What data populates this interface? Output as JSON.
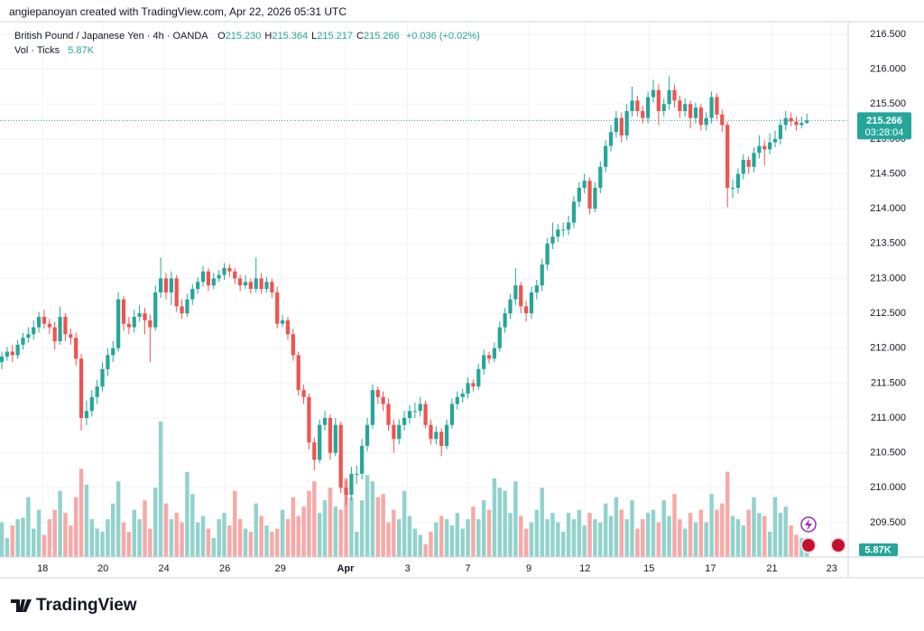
{
  "attribution": "angiepanoyan created with TradingView.com, Apr 22, 2026 05:31 UTC",
  "logo": "TradingView",
  "chart_data": {
    "type": "candlestick",
    "symbol": "British Pound / Japanese Yen · 4h · OANDA",
    "legend": [
      {
        "key": "O",
        "value": "215.230"
      },
      {
        "key": "H",
        "value": "215.364"
      },
      {
        "key": "L",
        "value": "215.217"
      },
      {
        "key": "C",
        "value": "215.266"
      }
    ],
    "change": "+0.036 (+0.02%)",
    "volume_title": "Vol · Ticks",
    "volume_last_label": "5.87K",
    "countdown": "03:28:04",
    "up_color": "#26a69a",
    "down_color": "#ef5350",
    "up_volume_color": "#92d2cc",
    "down_volume_color": "#f7a9a7",
    "grid": true,
    "xlim": [
      -0.34,
      159.8
    ],
    "ylim": [
      209.007,
      216.681
    ],
    "yticks": [
      {
        "value": 209.5,
        "label": "209.500"
      },
      {
        "value": 210,
        "label": "210.000"
      },
      {
        "value": 210.5,
        "label": "210.500"
      },
      {
        "value": 211,
        "label": "211.000"
      },
      {
        "value": 211.5,
        "label": "211.500"
      },
      {
        "value": 212,
        "label": "212.000"
      },
      {
        "value": 212.5,
        "label": "212.500"
      },
      {
        "value": 213,
        "label": "213.000"
      },
      {
        "value": 213.5,
        "label": "213.500"
      },
      {
        "value": 214,
        "label": "214.000"
      },
      {
        "value": 214.5,
        "label": "214.500"
      },
      {
        "value": 215,
        "label": "215.000"
      },
      {
        "value": 215.5,
        "label": "215.500"
      },
      {
        "value": 216,
        "label": "216.000"
      },
      {
        "value": 216.5,
        "label": "216.500"
      }
    ],
    "xticks": [
      {
        "value": 7.7,
        "label": "18"
      },
      {
        "value": 19.1,
        "label": "20"
      },
      {
        "value": 30.6,
        "label": "24"
      },
      {
        "value": 42.1,
        "label": "26"
      },
      {
        "value": 52.6,
        "label": "29"
      },
      {
        "value": 64.9,
        "label": "Apr"
      },
      {
        "value": 76.6,
        "label": "3"
      },
      {
        "value": 88.0,
        "label": "7"
      },
      {
        "value": 99.5,
        "label": "9"
      },
      {
        "value": 110.1,
        "label": "12"
      },
      {
        "value": 122.2,
        "label": "15"
      },
      {
        "value": 133.8,
        "label": "17"
      },
      {
        "value": 145.4,
        "label": "21"
      },
      {
        "value": 156.7,
        "label": "23"
      }
    ],
    "ohlc": [
      [
        211.8,
        211.95,
        211.7,
        211.88
      ],
      [
        211.88,
        212.02,
        211.82,
        211.95
      ],
      [
        211.95,
        212.05,
        211.8,
        211.9
      ],
      [
        211.9,
        212.12,
        211.85,
        212.05
      ],
      [
        212.05,
        212.22,
        211.98,
        212.15
      ],
      [
        212.15,
        212.3,
        212.08,
        212.2
      ],
      [
        212.2,
        212.4,
        212.12,
        212.3
      ],
      [
        212.3,
        212.52,
        212.22,
        212.45
      ],
      [
        212.45,
        212.55,
        212.28,
        212.35
      ],
      [
        212.35,
        212.42,
        212.2,
        212.3
      ],
      [
        212.3,
        212.38,
        211.98,
        212.1
      ],
      [
        212.1,
        212.6,
        212.05,
        212.45
      ],
      [
        212.45,
        212.5,
        212.1,
        212.2
      ],
      [
        212.2,
        212.28,
        212.05,
        212.15
      ],
      [
        212.15,
        212.22,
        211.75,
        211.85
      ],
      [
        211.85,
        211.92,
        210.82,
        211.0
      ],
      [
        211.0,
        211.25,
        210.9,
        211.1
      ],
      [
        211.1,
        211.4,
        211.02,
        211.3
      ],
      [
        211.3,
        211.55,
        211.2,
        211.45
      ],
      [
        211.45,
        211.8,
        211.38,
        211.7
      ],
      [
        211.7,
        212.0,
        211.6,
        211.9
      ],
      [
        211.9,
        212.1,
        211.8,
        212.0
      ],
      [
        212.0,
        212.8,
        211.95,
        212.7
      ],
      [
        212.7,
        212.75,
        212.25,
        212.35
      ],
      [
        212.35,
        212.45,
        212.2,
        212.3
      ],
      [
        212.3,
        212.55,
        212.22,
        212.45
      ],
      [
        212.45,
        212.62,
        212.38,
        212.5
      ],
      [
        212.5,
        212.58,
        212.2,
        212.4
      ],
      [
        212.4,
        212.48,
        211.8,
        212.3
      ],
      [
        212.3,
        212.9,
        212.25,
        212.8
      ],
      [
        212.8,
        213.3,
        212.72,
        213.0
      ],
      [
        213.0,
        213.08,
        212.7,
        212.8
      ],
      [
        212.8,
        213.1,
        212.62,
        213.0
      ],
      [
        213.0,
        213.05,
        212.52,
        212.6
      ],
      [
        212.6,
        212.7,
        212.42,
        212.5
      ],
      [
        212.5,
        212.78,
        212.45,
        212.7
      ],
      [
        212.7,
        212.92,
        212.62,
        212.85
      ],
      [
        212.85,
        213.02,
        212.78,
        212.95
      ],
      [
        212.95,
        213.18,
        212.88,
        213.1
      ],
      [
        213.1,
        213.15,
        212.82,
        212.9
      ],
      [
        212.9,
        213.08,
        212.85,
        213.0
      ],
      [
        213.0,
        213.12,
        212.95,
        213.05
      ],
      [
        213.05,
        213.22,
        212.98,
        213.15
      ],
      [
        213.15,
        213.2,
        213.02,
        213.1
      ],
      [
        213.1,
        213.15,
        212.92,
        213.0
      ],
      [
        213.0,
        213.05,
        212.82,
        212.9
      ],
      [
        212.9,
        213.05,
        212.85,
        212.95
      ],
      [
        212.95,
        213.0,
        212.78,
        212.85
      ],
      [
        212.85,
        213.3,
        212.8,
        213.0
      ],
      [
        213.0,
        213.08,
        212.78,
        212.85
      ],
      [
        212.85,
        213.02,
        212.8,
        212.95
      ],
      [
        212.95,
        213.0,
        212.72,
        212.8
      ],
      [
        212.8,
        212.88,
        212.28,
        212.35
      ],
      [
        212.35,
        212.48,
        212.3,
        212.4
      ],
      [
        212.4,
        212.45,
        212.12,
        212.2
      ],
      [
        212.2,
        212.28,
        211.82,
        211.9
      ],
      [
        211.9,
        211.95,
        211.32,
        211.4
      ],
      [
        211.4,
        211.48,
        211.2,
        211.3
      ],
      [
        211.3,
        211.35,
        210.55,
        210.65
      ],
      [
        210.65,
        210.72,
        210.25,
        210.4
      ],
      [
        210.4,
        210.98,
        210.35,
        210.9
      ],
      [
        210.9,
        211.1,
        210.82,
        211.0
      ],
      [
        211.0,
        211.05,
        210.4,
        210.5
      ],
      [
        210.5,
        211.0,
        210.45,
        210.9
      ],
      [
        210.9,
        210.95,
        209.92,
        210.0
      ],
      [
        210.0,
        210.1,
        209.75,
        209.9
      ],
      [
        209.9,
        210.3,
        209.82,
        210.2
      ],
      [
        210.2,
        210.32,
        210.05,
        210.2
      ],
      [
        210.2,
        210.7,
        210.12,
        210.6
      ],
      [
        210.6,
        211.0,
        210.52,
        210.9
      ],
      [
        210.9,
        211.48,
        210.85,
        211.4
      ],
      [
        211.4,
        211.45,
        211.2,
        211.3
      ],
      [
        211.3,
        211.38,
        211.1,
        211.2
      ],
      [
        211.2,
        211.28,
        210.82,
        210.9
      ],
      [
        210.9,
        210.98,
        210.5,
        210.7
      ],
      [
        210.7,
        210.98,
        210.62,
        210.9
      ],
      [
        210.9,
        211.1,
        210.82,
        211.0
      ],
      [
        211.0,
        211.18,
        210.92,
        211.1
      ],
      [
        211.1,
        211.22,
        211.0,
        211.1
      ],
      [
        211.1,
        211.3,
        211.02,
        211.2
      ],
      [
        211.2,
        211.25,
        210.85,
        210.9
      ],
      [
        210.9,
        210.98,
        210.62,
        210.7
      ],
      [
        210.7,
        210.88,
        210.62,
        210.8
      ],
      [
        210.8,
        210.85,
        210.45,
        210.6
      ],
      [
        210.6,
        210.98,
        210.55,
        210.9
      ],
      [
        210.9,
        211.28,
        210.85,
        211.2
      ],
      [
        211.2,
        211.38,
        211.12,
        211.3
      ],
      [
        211.3,
        211.42,
        211.22,
        211.35
      ],
      [
        211.35,
        211.58,
        211.28,
        211.5
      ],
      [
        211.5,
        211.55,
        211.38,
        211.45
      ],
      [
        211.45,
        211.78,
        211.4,
        211.7
      ],
      [
        211.7,
        211.98,
        211.62,
        211.9
      ],
      [
        211.9,
        211.95,
        211.78,
        211.85
      ],
      [
        211.85,
        212.08,
        211.8,
        212.0
      ],
      [
        212.0,
        212.38,
        211.95,
        212.3
      ],
      [
        212.3,
        212.58,
        212.22,
        212.5
      ],
      [
        212.5,
        212.78,
        212.42,
        212.7
      ],
      [
        212.7,
        213.15,
        212.62,
        212.9
      ],
      [
        212.9,
        212.95,
        212.5,
        212.6
      ],
      [
        212.6,
        212.68,
        212.38,
        212.5
      ],
      [
        212.5,
        212.88,
        212.42,
        212.8
      ],
      [
        212.8,
        212.98,
        212.7,
        212.9
      ],
      [
        212.9,
        213.28,
        212.82,
        213.2
      ],
      [
        213.2,
        213.58,
        213.12,
        213.5
      ],
      [
        213.5,
        213.8,
        213.42,
        213.6
      ],
      [
        213.6,
        213.78,
        213.52,
        213.7
      ],
      [
        213.7,
        213.8,
        213.6,
        213.7
      ],
      [
        213.7,
        213.9,
        213.62,
        213.8
      ],
      [
        213.8,
        214.18,
        213.72,
        214.1
      ],
      [
        214.1,
        214.38,
        214.02,
        214.3
      ],
      [
        214.3,
        214.5,
        214.22,
        214.4
      ],
      [
        214.4,
        214.45,
        213.92,
        214.0
      ],
      [
        214.0,
        214.38,
        213.95,
        214.3
      ],
      [
        214.3,
        214.68,
        214.22,
        214.6
      ],
      [
        214.6,
        214.98,
        214.52,
        214.9
      ],
      [
        214.9,
        215.2,
        214.82,
        215.1
      ],
      [
        215.1,
        215.4,
        215.02,
        215.3
      ],
      [
        215.3,
        215.38,
        214.95,
        215.05
      ],
      [
        215.05,
        215.5,
        214.98,
        215.4
      ],
      [
        215.4,
        215.75,
        215.32,
        215.55
      ],
      [
        215.55,
        215.62,
        215.32,
        215.4
      ],
      [
        215.4,
        215.48,
        215.22,
        215.3
      ],
      [
        215.3,
        215.68,
        215.22,
        215.6
      ],
      [
        215.6,
        215.85,
        215.52,
        215.7
      ],
      [
        215.7,
        215.78,
        215.2,
        215.4
      ],
      [
        215.4,
        215.58,
        215.32,
        215.5
      ],
      [
        215.5,
        215.9,
        215.42,
        215.7
      ],
      [
        215.7,
        215.78,
        215.45,
        215.55
      ],
      [
        215.55,
        215.62,
        215.3,
        215.4
      ],
      [
        215.4,
        215.58,
        215.32,
        215.5
      ],
      [
        215.5,
        215.55,
        215.15,
        215.3
      ],
      [
        215.3,
        215.52,
        215.22,
        215.45
      ],
      [
        215.45,
        215.5,
        215.12,
        215.2
      ],
      [
        215.2,
        215.38,
        215.12,
        215.3
      ],
      [
        215.3,
        215.68,
        215.22,
        215.6
      ],
      [
        215.6,
        215.65,
        215.28,
        215.35
      ],
      [
        215.35,
        215.42,
        215.1,
        215.2
      ],
      [
        215.2,
        215.25,
        214.02,
        214.3
      ],
      [
        214.3,
        214.42,
        214.15,
        214.3
      ],
      [
        214.3,
        214.58,
        214.22,
        214.5
      ],
      [
        214.5,
        214.78,
        214.42,
        214.7
      ],
      [
        214.7,
        214.75,
        214.5,
        214.6
      ],
      [
        214.6,
        214.88,
        214.52,
        214.8
      ],
      [
        214.8,
        215.05,
        214.72,
        214.9
      ],
      [
        214.9,
        214.98,
        214.62,
        214.85
      ],
      [
        214.85,
        215.08,
        214.78,
        214.95
      ],
      [
        214.95,
        215.12,
        214.88,
        215.0
      ],
      [
        215.0,
        215.28,
        214.92,
        215.2
      ],
      [
        215.2,
        215.4,
        215.12,
        215.3
      ],
      [
        215.3,
        215.38,
        215.18,
        215.25
      ],
      [
        215.25,
        215.32,
        215.12,
        215.2
      ],
      [
        215.2,
        215.32,
        215.15,
        215.23
      ],
      [
        215.23,
        215.364,
        215.217,
        215.266
      ]
    ],
    "volume": [
      11000,
      6000,
      10000,
      12000,
      12500,
      19000,
      9000,
      15000,
      7000,
      12000,
      15000,
      21000,
      14000,
      10000,
      19000,
      28000,
      23000,
      12000,
      9000,
      8000,
      12000,
      17000,
      24000,
      11000,
      8000,
      15000,
      12000,
      18000,
      9000,
      22000,
      43000,
      17000,
      12000,
      14000,
      11000,
      27000,
      20000,
      11000,
      13000,
      9000,
      6000,
      12000,
      14000,
      10000,
      21000,
      12000,
      9000,
      8000,
      17000,
      13000,
      10000,
      8000,
      9000,
      15000,
      12000,
      19000,
      13000,
      16000,
      21000,
      24000,
      14000,
      18000,
      22000,
      16000,
      15000,
      25000,
      19000,
      8000,
      18000,
      26000,
      24000,
      19000,
      20000,
      11000,
      15000,
      12000,
      21000,
      13000,
      9000,
      7000,
      4000,
      8000,
      11000,
      13000,
      12000,
      10000,
      14000,
      9000,
      12000,
      16000,
      12000,
      18000,
      15000,
      25000,
      22000,
      21000,
      14000,
      24000,
      13000,
      9000,
      11000,
      15000,
      22000,
      12000,
      14000,
      11000,
      8000,
      14000,
      12000,
      15000,
      10000,
      14000,
      12000,
      11000,
      17000,
      13000,
      19000,
      15000,
      12000,
      18000,
      9000,
      12000,
      14000,
      15000,
      11000,
      18000,
      13000,
      20000,
      12000,
      9000,
      14000,
      11000,
      15000,
      11000,
      20000,
      15000,
      17000,
      27000,
      13000,
      12000,
      10000,
      15000,
      19000,
      14000,
      13000,
      8000,
      19000,
      14000,
      16000,
      10000,
      7000,
      6000,
      5870
    ]
  }
}
